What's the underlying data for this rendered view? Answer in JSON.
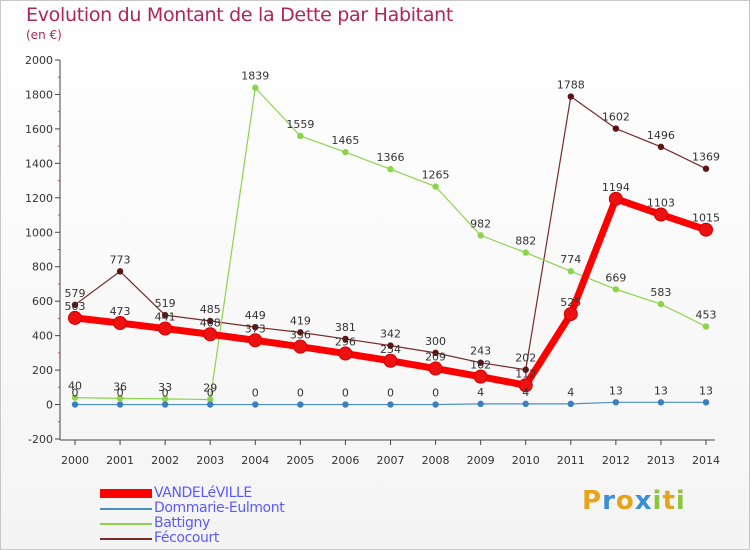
{
  "header": {
    "title": "Evolution du Montant de la Dette par Habitant",
    "unit": "(en €)"
  },
  "logo": {
    "letters": [
      "P",
      "r",
      "o",
      "x",
      "i",
      "t",
      "i"
    ],
    "colors": [
      "#e8a419",
      "#3b8fd6",
      "#e8a419",
      "#3b8fd6",
      "#8cc63f",
      "#e8a419",
      "#8cc63f"
    ]
  },
  "chart_data": {
    "type": "line",
    "title": "Evolution du Montant de la Dette par Habitant",
    "ylabel": "(en €)",
    "xlabel": "",
    "x": [
      "2000",
      "2001",
      "2002",
      "2003",
      "2004",
      "2005",
      "2006",
      "2007",
      "2008",
      "2009",
      "2010",
      "2011",
      "2012",
      "2013",
      "2014"
    ],
    "ylim": [
      -200,
      2000
    ],
    "yticks": [
      -200,
      0,
      200,
      400,
      600,
      800,
      1000,
      1200,
      1400,
      1600,
      1800,
      2000
    ],
    "yticklabels": [
      "-200",
      "0",
      "200",
      "400",
      "600",
      "800",
      "1000",
      "1200",
      "1400",
      "1600",
      "1800",
      "2000"
    ],
    "grid": false,
    "legend_position": "bottom-left",
    "series": [
      {
        "name": "Fécocourt",
        "color": "#7a2a2a",
        "marker_color": "#5e1212",
        "values": [
          579,
          773,
          519,
          485,
          449,
          419,
          381,
          342,
          300,
          243,
          202,
          1788,
          1602,
          1496,
          1369
        ],
        "labels": [
          "579",
          "773",
          "519",
          "485",
          "449",
          "419",
          "381",
          "342",
          "300",
          "243",
          "202",
          "1788",
          "1602",
          "1496",
          "1369"
        ]
      },
      {
        "name": "Battigny",
        "color": "#8cd44a",
        "marker_color": "#8cd44a",
        "values": [
          40,
          36,
          33,
          29,
          1839,
          1559,
          1465,
          1366,
          1265,
          982,
          882,
          774,
          669,
          583,
          453
        ],
        "labels": [
          "40",
          "36",
          "33",
          "29",
          "1839",
          "1559",
          "1465",
          "1366",
          "1265",
          "982",
          "882",
          "774",
          "669",
          "583",
          "453"
        ]
      },
      {
        "name": "Dommarie-Eulmont",
        "color": "#4a90c8",
        "marker_color": "#3a7fbf",
        "values": [
          0,
          0,
          0,
          0,
          0,
          0,
          0,
          0,
          0,
          4,
          4,
          4,
          13,
          13,
          13
        ],
        "labels": [
          "0",
          "0",
          "0",
          "0",
          "0",
          "0",
          "0",
          "0",
          "0",
          "4",
          "4",
          "4",
          "13",
          "13",
          "13"
        ]
      },
      {
        "name": "VANDELéVILLE",
        "color": "#ff0000",
        "marker_color": "#ee1111",
        "values": [
          503,
          473,
          441,
          408,
          373,
          336,
          296,
          254,
          209,
          162,
          112,
          525,
          1194,
          1103,
          1015
        ],
        "labels": [
          "503",
          "473",
          "441",
          "408",
          "373",
          "336",
          "296",
          "254",
          "209",
          "162",
          "112",
          "525",
          "1194",
          "1103",
          "1015"
        ]
      }
    ]
  },
  "legend": {
    "items": [
      {
        "label": "VANDELéVILLE",
        "color": "#ff0000"
      },
      {
        "label": "Dommarie-Eulmont",
        "color": "#4a90c8"
      },
      {
        "label": "Battigny",
        "color": "#8cd44a"
      },
      {
        "label": "Fécocourt",
        "color": "#7a2a2a"
      }
    ]
  }
}
